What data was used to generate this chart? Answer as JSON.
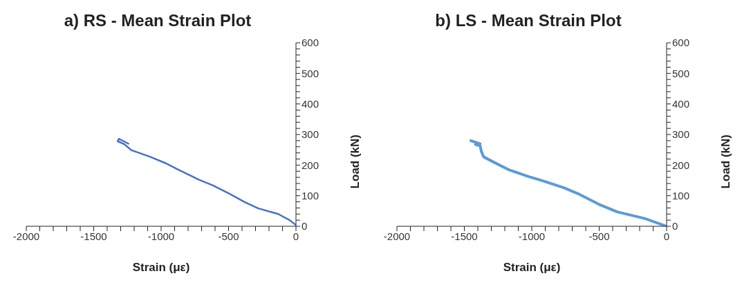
{
  "chart_data": [
    {
      "type": "line",
      "title": "a) RS - Mean Strain Plot",
      "xlabel": "Strain (με)",
      "ylabel": "Load (kN)",
      "xlim": [
        -2000,
        0
      ],
      "ylim": [
        0,
        600
      ],
      "xticks": [
        -2000,
        {
          "value": -1900,
          "label": null
        },
        {
          "value": -1800,
          "label": null
        },
        {
          "value": -1700,
          "label": null
        },
        {
          "value": -1600,
          "label": null
        },
        -1500,
        {
          "value": -1400,
          "label": null
        },
        {
          "value": -1300,
          "label": null
        },
        {
          "value": -1200,
          "label": null
        },
        {
          "value": -1100,
          "label": null
        },
        -1000,
        {
          "value": -900,
          "label": null
        },
        {
          "value": -800,
          "label": null
        },
        {
          "value": -700,
          "label": null
        },
        {
          "value": -600,
          "label": null
        },
        -500,
        {
          "value": -400,
          "label": null
        },
        {
          "value": -300,
          "label": null
        },
        {
          "value": -200,
          "label": null
        },
        {
          "value": -100,
          "label": null
        },
        0
      ],
      "yticks": [
        0,
        {
          "value": 20,
          "label": null
        },
        {
          "value": 40,
          "label": null
        },
        {
          "value": 60,
          "label": null
        },
        {
          "value": 80,
          "label": null
        },
        100,
        {
          "value": 120,
          "label": null
        },
        {
          "value": 140,
          "label": null
        },
        {
          "value": 160,
          "label": null
        },
        {
          "value": 180,
          "label": null
        },
        200,
        {
          "value": 220,
          "label": null
        },
        {
          "value": 240,
          "label": null
        },
        {
          "value": 260,
          "label": null
        },
        {
          "value": 280,
          "label": null
        },
        300,
        {
          "value": 320,
          "label": null
        },
        {
          "value": 340,
          "label": null
        },
        {
          "value": 360,
          "label": null
        },
        {
          "value": 380,
          "label": null
        },
        400,
        {
          "value": 420,
          "label": null
        },
        {
          "value": 440,
          "label": null
        },
        {
          "value": 460,
          "label": null
        },
        {
          "value": 480,
          "label": null
        },
        500,
        {
          "value": 520,
          "label": null
        },
        {
          "value": 540,
          "label": null
        },
        {
          "value": 560,
          "label": null
        },
        {
          "value": 580,
          "label": null
        },
        600
      ],
      "grid": false,
      "series": [
        {
          "color": "#4472c4",
          "x": [
            0,
            -47,
            -131,
            -282,
            -383,
            -500,
            -617,
            -718,
            -886,
            -970,
            -1087,
            -1221,
            -1272,
            -1322,
            -1314,
            -1238
          ],
          "values": [
            4,
            20,
            40,
            59,
            80,
            108,
            134,
            152,
            188,
            207,
            228,
            249,
            268,
            278,
            286,
            269
          ]
        }
      ]
    },
    {
      "type": "line",
      "title": "b) LS - Mean Strain Plot",
      "xlabel": "Strain (με)",
      "ylabel": "Load (kN)",
      "xlim": [
        -2000,
        0
      ],
      "ylim": [
        0,
        600
      ],
      "xticks": [
        -2000,
        {
          "value": -1900,
          "label": null
        },
        {
          "value": -1800,
          "label": null
        },
        {
          "value": -1700,
          "label": null
        },
        {
          "value": -1600,
          "label": null
        },
        -1500,
        {
          "value": -1400,
          "label": null
        },
        {
          "value": -1300,
          "label": null
        },
        {
          "value": -1200,
          "label": null
        },
        {
          "value": -1100,
          "label": null
        },
        -1000,
        {
          "value": -900,
          "label": null
        },
        {
          "value": -800,
          "label": null
        },
        {
          "value": -700,
          "label": null
        },
        {
          "value": -600,
          "label": null
        },
        -500,
        {
          "value": -400,
          "label": null
        },
        {
          "value": -300,
          "label": null
        },
        {
          "value": -200,
          "label": null
        },
        {
          "value": -100,
          "label": null
        },
        0
      ],
      "yticks": [
        0,
        {
          "value": 20,
          "label": null
        },
        {
          "value": 40,
          "label": null
        },
        {
          "value": 60,
          "label": null
        },
        {
          "value": 80,
          "label": null
        },
        100,
        {
          "value": 120,
          "label": null
        },
        {
          "value": 140,
          "label": null
        },
        {
          "value": 160,
          "label": null
        },
        {
          "value": 180,
          "label": null
        },
        200,
        {
          "value": 220,
          "label": null
        },
        {
          "value": 240,
          "label": null
        },
        {
          "value": 260,
          "label": null
        },
        {
          "value": 280,
          "label": null
        },
        300,
        {
          "value": 320,
          "label": null
        },
        {
          "value": 340,
          "label": null
        },
        {
          "value": 360,
          "label": null
        },
        {
          "value": 380,
          "label": null
        },
        400,
        {
          "value": 420,
          "label": null
        },
        {
          "value": 440,
          "label": null
        },
        {
          "value": 460,
          "label": null
        },
        {
          "value": 480,
          "label": null
        },
        500,
        {
          "value": 520,
          "label": null
        },
        {
          "value": 540,
          "label": null
        },
        {
          "value": 560,
          "label": null
        },
        {
          "value": 580,
          "label": null
        },
        600
      ],
      "grid": false,
      "series": [
        {
          "color": "#5b9bd5",
          "x": [
            0,
            -159,
            -366,
            -503,
            -659,
            -762,
            -934,
            -1021,
            -1176,
            -1279,
            -1357,
            -1374,
            -1383,
            -1417,
            -1383,
            -1460
          ],
          "values": [
            0,
            25,
            47,
            72,
            107,
            126,
            151,
            162,
            186,
            209,
            227,
            245,
            263,
            267,
            270,
            281
          ]
        }
      ]
    }
  ]
}
